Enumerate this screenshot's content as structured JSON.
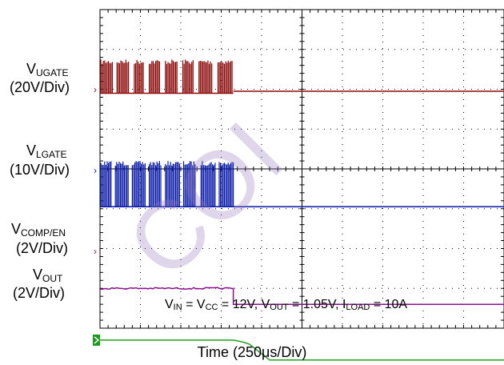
{
  "chart_data": {
    "type": "line",
    "title": "",
    "xlabel": "Time (250μs/Div)",
    "x_unit_per_div": "250μs",
    "grid": true,
    "x_divisions": 10,
    "y_divisions": 8,
    "annotation": "VIN = VCC = 12V, VOUT = 1.05V, ILOAD = 10A",
    "series": [
      {
        "name": "VUGATE",
        "scale": "20V/Div",
        "color": "#8b0a0a",
        "style": "switching",
        "switching_until_div": 3.3,
        "high_div": 0.6,
        "low_div": 0.3,
        "settled_div": 0.35
      },
      {
        "name": "VLGATE",
        "scale": "10V/Div",
        "color": "#0a1aa8",
        "style": "switching",
        "switching_until_div": 3.3,
        "high_div": 0.6,
        "low_div": 0.0,
        "settled_div": 0.0
      },
      {
        "name": "VCOMP/EN",
        "scale": "2V/Div",
        "color": "#8a1090",
        "style": "step",
        "step_at_div": 3.3,
        "before_div": 0.4,
        "after_div": 0.0
      },
      {
        "name": "VOUT",
        "scale": "2V/Div",
        "color": "#22a022",
        "style": "ramp",
        "ramp_start_div": 3.3,
        "ramp_end_div": 4.2,
        "before_div": 0.5,
        "after_div": 0.0
      }
    ]
  },
  "labels": {
    "ugate_main": "V",
    "ugate_sub": "UGATE",
    "ugate_scale": "(20V/Div)",
    "lgate_main": "V",
    "lgate_sub": "LGATE",
    "lgate_scale": "(10V/Div)",
    "comp_main": "V",
    "comp_sub": "COMP/EN",
    "comp_scale": "(2V/Div)",
    "vout_main": "V",
    "vout_sub": "OUT",
    "vout_scale": "(2V/Div)"
  },
  "annotation_parts": {
    "p1": "V",
    "s1": "IN",
    "p2": " = V",
    "s2": "CC",
    "p3": " = 12V, V",
    "s3": "OUT",
    "p4": " = 1.05V, I",
    "s4": "LOAD",
    "p5": " = 10A"
  },
  "watermark": "COI"
}
